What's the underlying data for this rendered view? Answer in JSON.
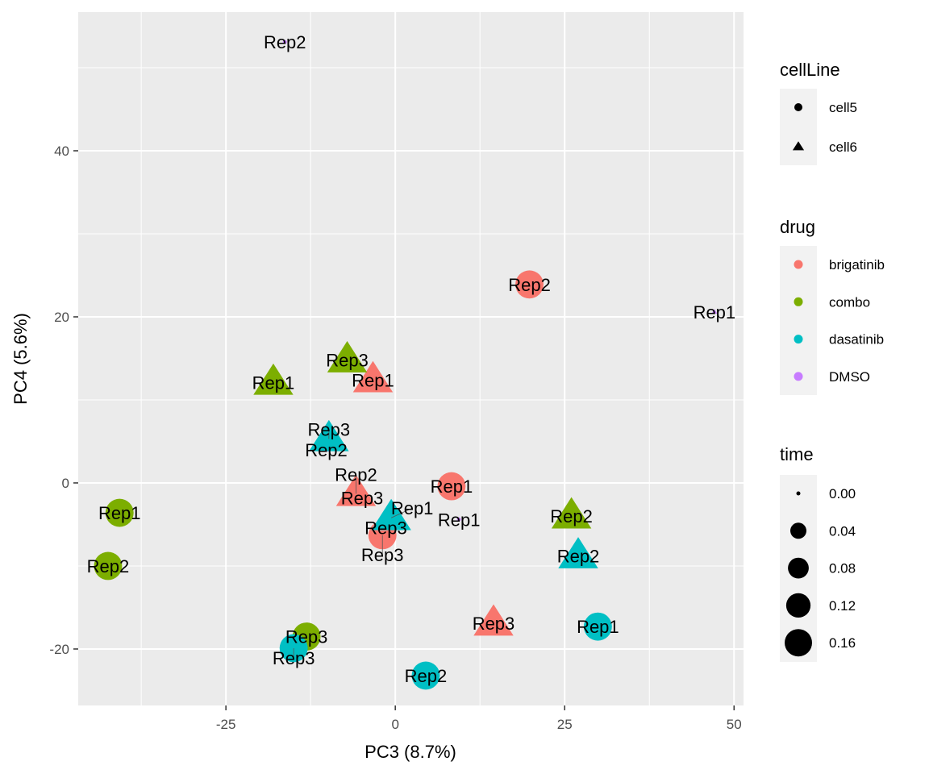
{
  "chart_data": {
    "type": "scatter",
    "xlabel": "PC3 (8.7%)",
    "ylabel": "PC4 (5.6%)",
    "xlim": [
      -46.8,
      51.4
    ],
    "ylim": [
      -26.8,
      56.7
    ],
    "x_ticks": [
      -25,
      0,
      25,
      50
    ],
    "y_ticks": [
      -20,
      0,
      20,
      40
    ],
    "grid": true,
    "legend_position": "right",
    "colors": {
      "brigatinib": "#F8766D",
      "combo": "#7CAE00",
      "dasatinib": "#00BFC4",
      "DMSO": "#C77CFF"
    },
    "legends": {
      "cellLine": {
        "title": "cellLine",
        "entries": [
          {
            "label": "cell5",
            "shape": "circle"
          },
          {
            "label": "cell6",
            "shape": "triangle"
          }
        ]
      },
      "drug": {
        "title": "drug",
        "entries": [
          "brigatinib",
          "combo",
          "dasatinib",
          "DMSO"
        ]
      },
      "time": {
        "title": "time",
        "entries": [
          "0.00",
          "0.04",
          "0.08",
          "0.12",
          "0.16"
        ]
      }
    },
    "points": [
      {
        "label": "Rep2",
        "drug": "DMSO",
        "cellLine": "cell5",
        "time": 0,
        "x": -16.3,
        "y": 53.1
      },
      {
        "label": "Rep1",
        "drug": "DMSO",
        "cellLine": "cell6",
        "time": 0,
        "x": 47.1,
        "y": 20.6
      },
      {
        "label": "Rep2",
        "drug": "DMSO",
        "cellLine": "cell6",
        "time": 0,
        "x": -10.2,
        "y": 4.0
      },
      {
        "label": "Rep3",
        "drug": "DMSO",
        "cellLine": "cell6",
        "time": 0,
        "x": -4.9,
        "y": -1.8
      },
      {
        "label": "Rep1",
        "drug": "DMSO",
        "cellLine": "cell5",
        "time": 0,
        "x": 9.4,
        "y": -4.4
      },
      {
        "label": "Rep3",
        "drug": "DMSO",
        "cellLine": "cell5",
        "time": 0,
        "x": -1.4,
        "y": -5.4
      },
      {
        "label": "Rep2",
        "drug": "brigatinib",
        "cellLine": "cell5",
        "time": 0.17,
        "x": 19.8,
        "y": 23.9
      },
      {
        "label": "Rep1",
        "drug": "brigatinib",
        "cellLine": "cell5",
        "time": 0.17,
        "x": 8.3,
        "y": -0.4
      },
      {
        "label": "Rep3",
        "drug": "brigatinib",
        "cellLine": "cell5",
        "time": 0.17,
        "x": -1.9,
        "y": -6.3
      },
      {
        "label": "Rep1",
        "drug": "brigatinib",
        "cellLine": "cell6",
        "time": 0.17,
        "x": -3.3,
        "y": 12.4
      },
      {
        "label": "Rep2",
        "drug": "brigatinib",
        "cellLine": "cell6",
        "time": 0.17,
        "x": -5.8,
        "y": -1.3
      },
      {
        "label": "Rep3",
        "drug": "brigatinib",
        "cellLine": "cell6",
        "time": 0.17,
        "x": 14.5,
        "y": -16.9
      },
      {
        "label": "Rep1",
        "drug": "combo",
        "cellLine": "cell5",
        "time": 0.17,
        "x": -40.7,
        "y": -3.6
      },
      {
        "label": "Rep2",
        "drug": "combo",
        "cellLine": "cell5",
        "time": 0.17,
        "x": -42.4,
        "y": -10.0
      },
      {
        "label": "Rep3",
        "drug": "combo",
        "cellLine": "cell5",
        "time": 0.17,
        "x": -13.1,
        "y": -18.5
      },
      {
        "label": "Rep1",
        "drug": "combo",
        "cellLine": "cell6",
        "time": 0.17,
        "x": -18.0,
        "y": 12.1
      },
      {
        "label": "Rep3",
        "drug": "combo",
        "cellLine": "cell6",
        "time": 0.17,
        "x": -7.1,
        "y": 14.8
      },
      {
        "label": "Rep2",
        "drug": "combo",
        "cellLine": "cell6",
        "time": 0.17,
        "x": 26.0,
        "y": -4.0
      },
      {
        "label": "Rep1",
        "drug": "dasatinib",
        "cellLine": "cell5",
        "time": 0.17,
        "x": 29.9,
        "y": -17.3
      },
      {
        "label": "Rep2",
        "drug": "dasatinib",
        "cellLine": "cell5",
        "time": 0.17,
        "x": 4.5,
        "y": -23.2
      },
      {
        "label": "Rep3",
        "drug": "dasatinib",
        "cellLine": "cell5",
        "time": 0.17,
        "x": -15.0,
        "y": -19.9
      },
      {
        "label": "Rep3",
        "drug": "dasatinib",
        "cellLine": "cell6",
        "time": 0.17,
        "x": -9.8,
        "y": 5.3
      },
      {
        "label": "Rep1",
        "drug": "dasatinib",
        "cellLine": "cell6",
        "time": 0.17,
        "x": -0.6,
        "y": -4.2
      },
      {
        "label": "Rep2",
        "drug": "dasatinib",
        "cellLine": "cell6",
        "time": 0.17,
        "x": 27.0,
        "y": -8.8
      }
    ]
  }
}
